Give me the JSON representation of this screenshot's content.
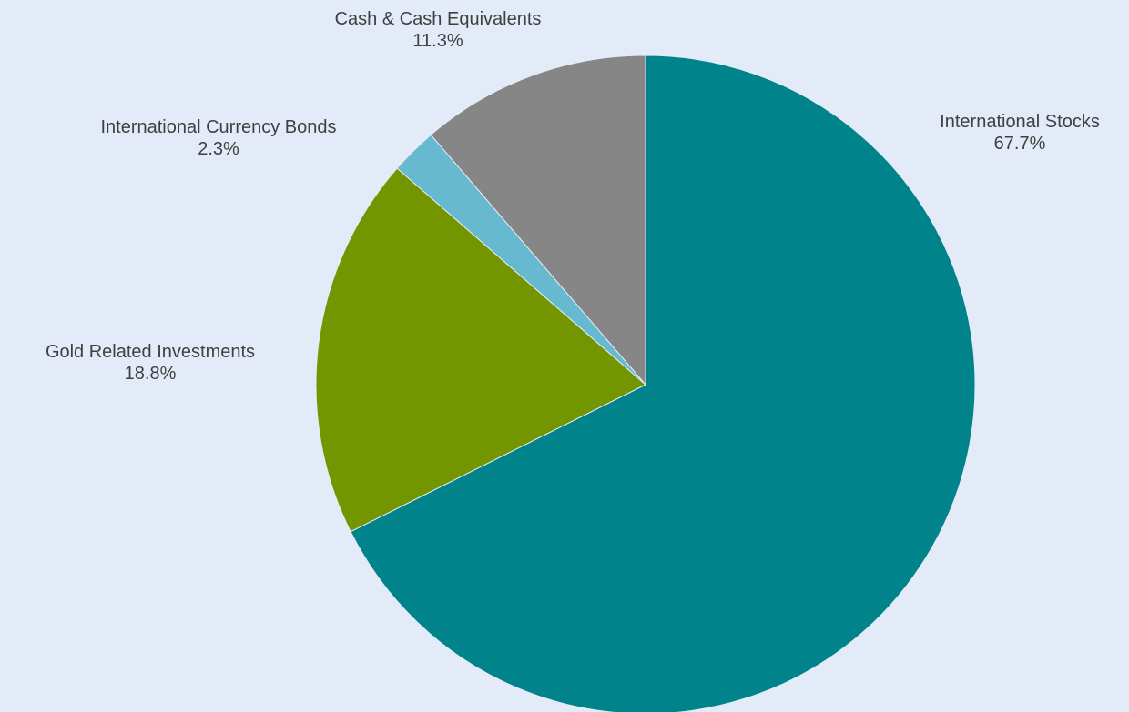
{
  "chart_data": {
    "type": "pie",
    "title": "",
    "start": "12 o'clock",
    "direction": "clockwise",
    "slices": [
      {
        "name": "International Stocks",
        "value": 67.7,
        "label": "67.7%",
        "color": "#00838a"
      },
      {
        "name": "Gold Related Investments",
        "value": 18.8,
        "label": "18.8%",
        "color": "#739500"
      },
      {
        "name": "International Currency Bonds",
        "value": 2.3,
        "label": "2.3%",
        "color": "#66b9cf"
      },
      {
        "name": "Cash & Cash Equivalents",
        "value": 11.3,
        "label": "11.3%",
        "color": "#868686"
      }
    ],
    "background_color": "#e3ebf8",
    "label_color": "#404040"
  }
}
